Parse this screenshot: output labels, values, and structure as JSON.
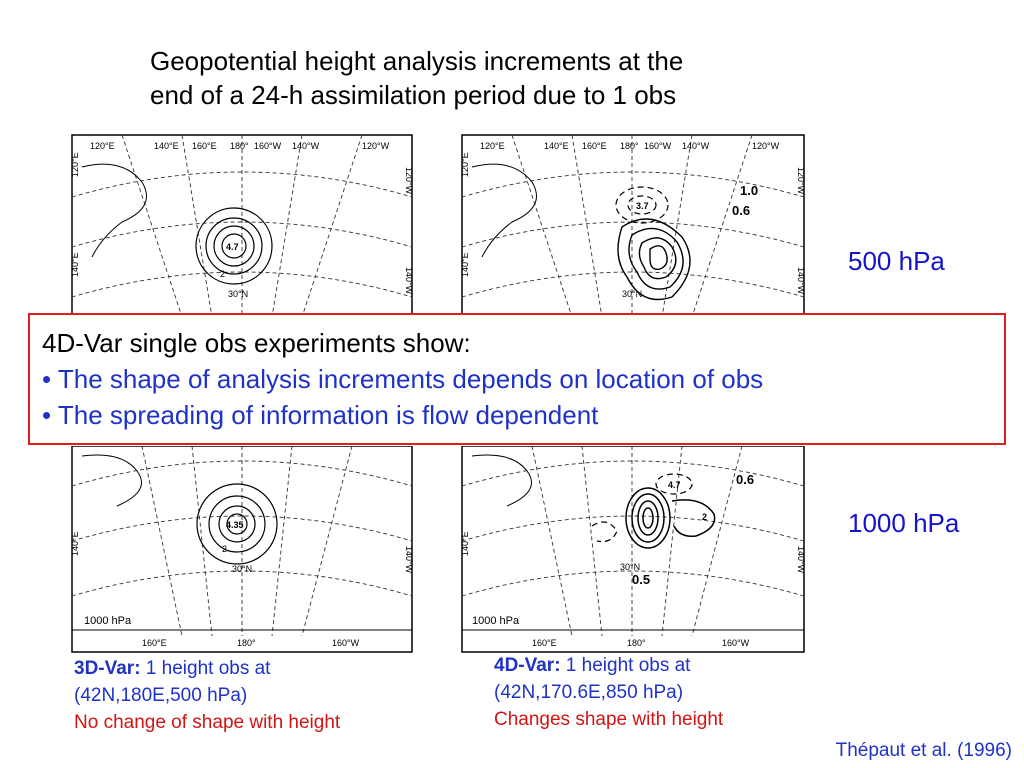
{
  "title": {
    "line1": "Geopotential height analysis increments at the",
    "line2": "end of a 24-h assimilation period due to 1 obs"
  },
  "levels": {
    "upper": "500 hPa",
    "lower": "1000 hPa"
  },
  "maps": {
    "top_lon_labels": [
      "120°E",
      "140°E",
      "160°E",
      "180°",
      "160°W",
      "140°W",
      "120°W"
    ],
    "bottom_lon_labels": [
      "160°E",
      "180°",
      "160°W"
    ],
    "left_lat_labels": [
      "120°E",
      "140°E"
    ],
    "right_lat_labels": [
      "120°W",
      "140°W"
    ],
    "lat_label": "30°N",
    "panel_label": "1000 hPa",
    "top_left_values": {
      "center": "4.7",
      "outer": "2"
    },
    "top_right_values": {
      "v1": "1.0",
      "v2": "0.6",
      "v3": "3.7"
    },
    "bottom_left_values": {
      "center": "4.35",
      "outer": "2"
    },
    "bottom_right_values": {
      "v1": "0.6",
      "v2": "0.5",
      "v3": "4.7",
      "v4": "2"
    }
  },
  "callout": {
    "heading": "4D-Var single obs experiments show:",
    "bullet1": "• The shape of analysis increments depends on location of obs",
    "bullet2": "• The spreading of information is flow dependent"
  },
  "captions": {
    "left": {
      "method": "3D-Var:",
      "line1_rest": " 1 height obs at",
      "line2": "(42N,180E,500 hPa)",
      "line3": "No change of shape with height"
    },
    "right": {
      "method": "4D-Var:",
      "line1_rest": " 1 height obs at",
      "line2": "(42N,170.6E,850 hPa)",
      "line3": "Changes shape with height"
    }
  },
  "reference": "Thépaut et al. (1996)",
  "colors": {
    "blue": "#1e32c8",
    "red": "#d21414",
    "box_border": "#e01e1e"
  }
}
